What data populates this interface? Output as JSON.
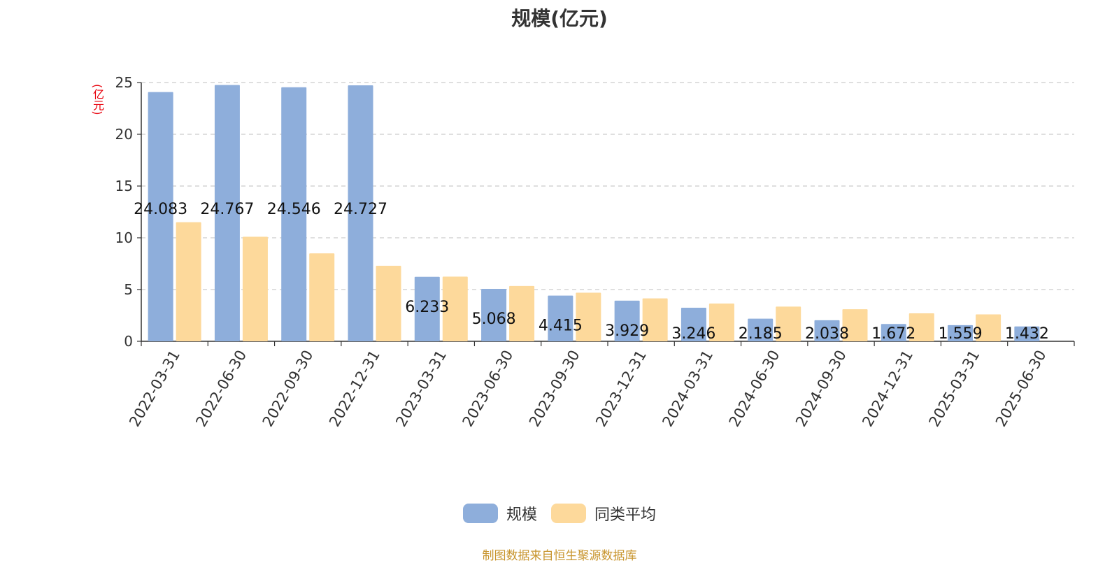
{
  "chart_data": {
    "type": "bar",
    "title": "规模(亿元)",
    "ylabel": "(亿元)",
    "ylim": [
      0,
      25
    ],
    "yticks": [
      0,
      5,
      10,
      15,
      20,
      25
    ],
    "grid": "horizontal-dashed",
    "legend_position": "bottom-center",
    "categories": [
      "2022-03-31",
      "2022-06-30",
      "2022-09-30",
      "2022-12-31",
      "2023-03-31",
      "2023-06-30",
      "2023-09-30",
      "2023-12-31",
      "2024-03-31",
      "2024-06-30",
      "2024-09-30",
      "2024-12-31",
      "2025-03-31",
      "2025-06-30"
    ],
    "series": [
      {
        "name": "规模",
        "color": "#8eaedb",
        "values": [
          24.083,
          24.767,
          24.546,
          24.727,
          6.233,
          5.068,
          4.415,
          3.929,
          3.246,
          2.185,
          2.038,
          1.672,
          1.559,
          1.432
        ],
        "labels": [
          "24.083",
          "24.767",
          "24.546",
          "24.727",
          "6.233",
          "5.068",
          "4.415",
          "3.929",
          "3.246",
          "2.185",
          "2.038",
          "1.672",
          "1.559",
          "1.432"
        ]
      },
      {
        "name": "同类平均",
        "color": "#fdd99b",
        "values": [
          11.5,
          10.1,
          8.5,
          7.3,
          6.25,
          5.35,
          4.7,
          4.15,
          3.65,
          3.35,
          3.1,
          2.7,
          2.6,
          null
        ]
      }
    ]
  },
  "source_note": "制图数据来自恒生聚源数据库"
}
